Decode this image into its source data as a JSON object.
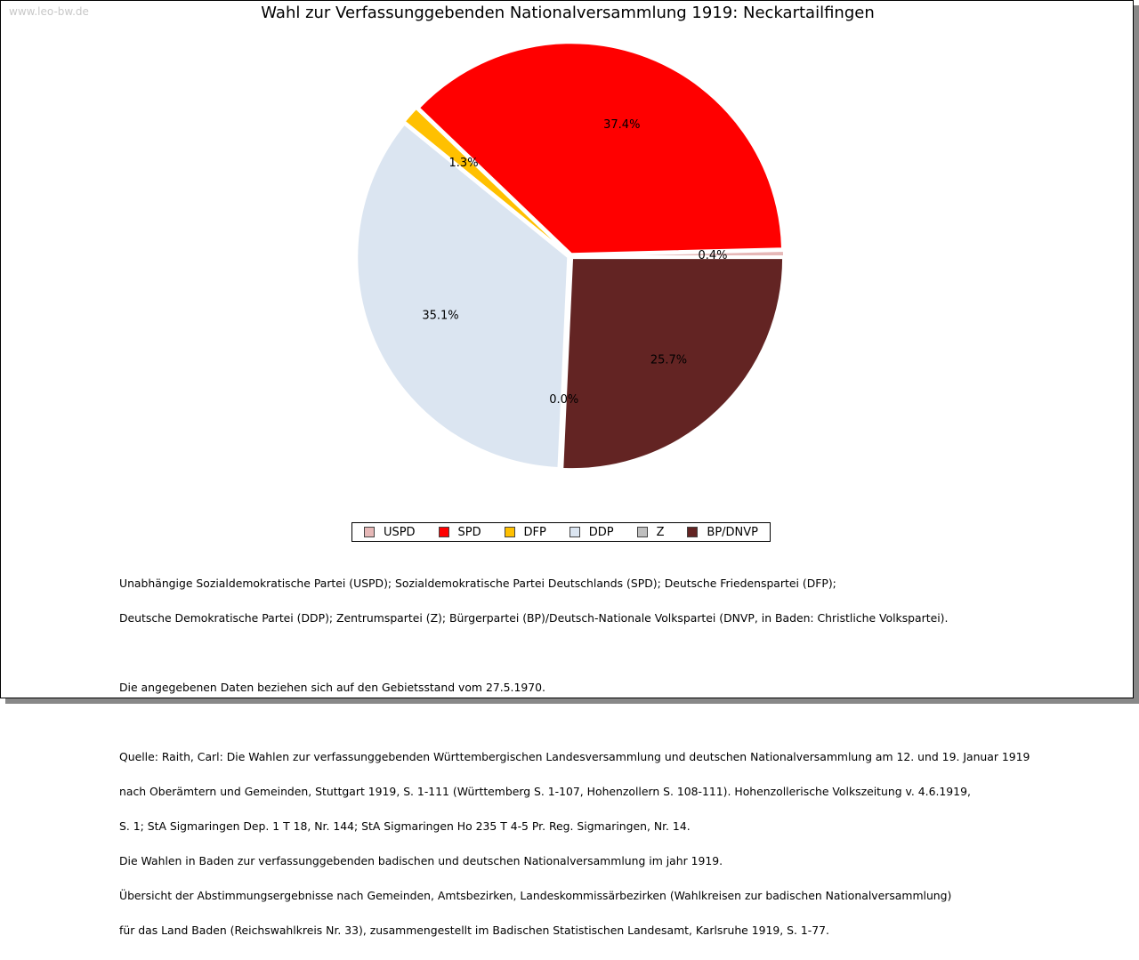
{
  "watermark": "www.leo-bw.de",
  "chart_data": {
    "type": "pie",
    "title": "Wahl zur Verfassunggebenden Nationalversammlung 1919: Neckartailfingen",
    "legend_position": "bottom",
    "start": "east, clockwise",
    "slices": [
      {
        "name": "BP/DNVP",
        "value": 25.7,
        "label": "25.7%",
        "color": "#632423"
      },
      {
        "name": "Z",
        "value": 0.0,
        "label": "0.0%",
        "color": "#bfbfbf"
      },
      {
        "name": "DDP",
        "value": 35.1,
        "label": "35.1%",
        "color": "#dbe5f1"
      },
      {
        "name": "DFP",
        "value": 1.3,
        "label": "1.3%",
        "color": "#ffc000"
      },
      {
        "name": "SPD",
        "value": 37.4,
        "label": "37.4%",
        "color": "#ff0000"
      },
      {
        "name": "USPD",
        "value": 0.4,
        "label": "0.4%",
        "color": "#e6b8b7"
      }
    ],
    "legend": [
      {
        "name": "USPD",
        "color": "#e6b8b7"
      },
      {
        "name": "SPD",
        "color": "#ff0000"
      },
      {
        "name": "DFP",
        "color": "#ffc000"
      },
      {
        "name": "DDP",
        "color": "#dbe5f1"
      },
      {
        "name": "Z",
        "color": "#bfbfbf"
      },
      {
        "name": "BP/DNVP",
        "color": "#632423"
      }
    ]
  },
  "notes": {
    "parties": [
      "Unabhängige Sozialdemokratische Partei (USPD); Sozialdemokratische Partei Deutschlands (SPD); Deutsche Friedenspartei (DFP);",
      "Deutsche Demokratische Partei (DDP); Zentrumspartei (Z); Bürgerpartei (BP)/Deutsch-Nationale Volkspartei (DNVP, in Baden: Christliche Volkspartei)."
    ],
    "territory": "Die angegebenen Daten beziehen sich auf den Gebietsstand vom 27.5.1970.",
    "source": [
      "Quelle: Raith, Carl: Die Wahlen zur verfassunggebenden Württembergischen Landesversammlung und deutschen Nationalversammlung am 12. und 19. Januar 1919",
      "nach Oberämtern und Gemeinden, Stuttgart 1919, S. 1-111 (Württemberg S. 1-107, Hohenzollern S. 108-111). Hohenzollerische Volkszeitung v. 4.6.1919,",
      "S. 1; StA Sigmaringen Dep. 1 T 18, Nr. 144; StA Sigmaringen Ho 235 T 4-5 Pr. Reg. Sigmaringen, Nr. 14.",
      "Die Wahlen in Baden zur verfassunggebenden badischen und deutschen Nationalversammlung im jahr 1919.",
      "Übersicht der Abstimmungsergebnisse nach Gemeinden, Amtsbezirken, Landeskommissärbezirken (Wahlkreisen zur badischen Nationalversammlung)",
      "für das Land Baden (Reichswahlkreis Nr. 33), zusammengestellt im Badischen Statistischen Landesamt, Karlsruhe 1919, S. 1-77."
    ]
  }
}
